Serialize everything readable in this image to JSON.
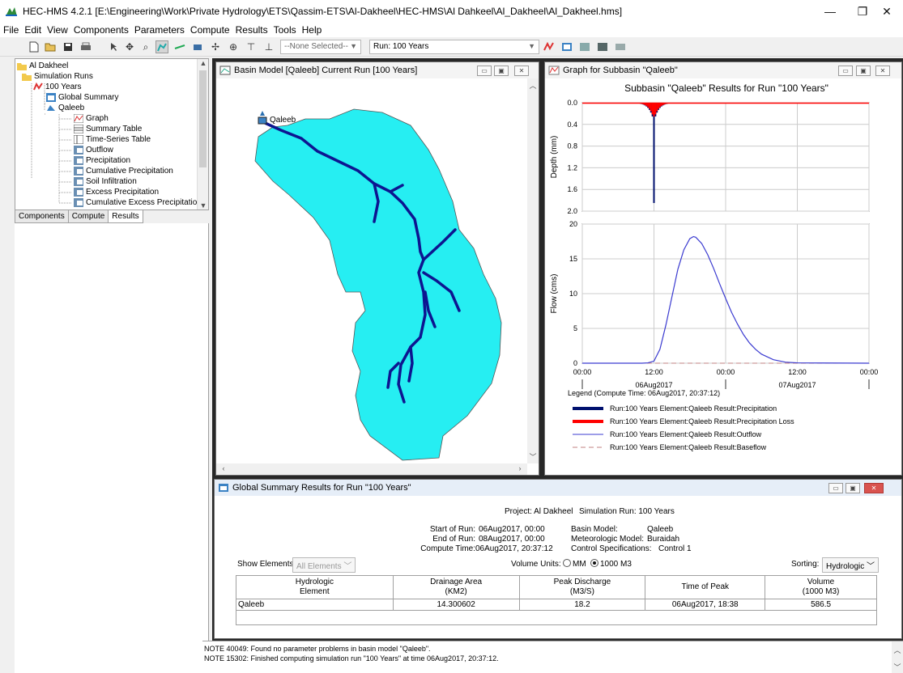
{
  "window": {
    "title": "HEC-HMS 4.2.1 [E:\\Engineering\\Work\\Private Hydrology\\ETS\\Qassim-ETS\\Al-Dakheel\\HEC-HMS\\Al Dahkeel\\Al_Dakheel\\Al_Dakheel.hms]",
    "minimize": "—",
    "restore": "❐",
    "close": "✕"
  },
  "menu": [
    "File",
    "Edit",
    "View",
    "Components",
    "Parameters",
    "Compute",
    "Results",
    "Tools",
    "Help"
  ],
  "toolbar": {
    "selection": "--None Selected--",
    "run": "Run: 100 Years"
  },
  "tree": {
    "items": [
      {
        "label": "Al Dakheel",
        "icon": "folder-icon"
      },
      {
        "label": "Simulation Runs",
        "icon": "folder-icon"
      },
      {
        "label": "100 Years",
        "icon": "run-icon"
      },
      {
        "label": "Global Summary",
        "icon": "table-icon"
      },
      {
        "label": "Qaleeb",
        "icon": "subbasin-icon"
      },
      {
        "label": "Graph",
        "icon": "graph-icon"
      },
      {
        "label": "Summary Table",
        "icon": "table-icon"
      },
      {
        "label": "Time-Series Table",
        "icon": "table-icon"
      },
      {
        "label": "Outflow",
        "icon": "series-icon"
      },
      {
        "label": "Precipitation",
        "icon": "series-icon"
      },
      {
        "label": "Cumulative Precipitation",
        "icon": "series-icon"
      },
      {
        "label": "Soil Infiltration",
        "icon": "series-icon"
      },
      {
        "label": "Excess Precipitation",
        "icon": "series-icon"
      },
      {
        "label": "Cumulative Excess Precipitation",
        "icon": "series-icon"
      }
    ]
  },
  "tabs": [
    "Components",
    "Compute",
    "Results"
  ],
  "basin_window": {
    "title": "Basin Model [Qaleeb] Current Run [100 Years]",
    "element_label": "Qaleeb"
  },
  "graph_window": {
    "title": "Graph for Subbasin \"Qaleeb\""
  },
  "chart_data": [
    {
      "type": "bar",
      "title": "Subbasin \"Qaleeb\" Results for Run \"100 Years\"",
      "ylabel": "Depth (mm)",
      "ylim": [
        2.0,
        0.0
      ],
      "yticks": [
        "0.0",
        "0.4",
        "0.8",
        "1.2",
        "1.6",
        "2.0"
      ],
      "x_hours": [
        0,
        12,
        24,
        36,
        48
      ],
      "series": [
        {
          "name": "Run:100 Years Element:Qaleeb Result:Precipitation",
          "color": "#00106e",
          "peak_hour": 12,
          "peak_value": 1.85
        },
        {
          "name": "Run:100 Years Element:Qaleeb Result:Precipitation Loss",
          "color": "#ff0000",
          "peak_hour": 12,
          "peak_value": 0.3
        }
      ]
    },
    {
      "type": "line",
      "ylabel": "Flow (cms)",
      "ylim": [
        0,
        20
      ],
      "yticks": [
        "0",
        "5",
        "10",
        "15",
        "20"
      ],
      "xticks": [
        "00:00",
        "12:00",
        "00:00",
        "12:00",
        "00:00"
      ],
      "date_labels": [
        "06Aug2017",
        "07Aug2017"
      ],
      "series": [
        {
          "name": "Run:100 Years Element:Qaleeb Result:Outflow",
          "color": "#3b3bd0",
          "x": [
            0,
            10,
            11,
            12,
            13,
            14,
            15,
            16,
            17,
            18,
            18.6,
            19,
            20,
            21,
            22,
            23,
            24,
            25,
            26,
            27,
            28,
            29,
            30,
            32,
            34,
            36,
            48
          ],
          "y": [
            0,
            0,
            0.05,
            0.3,
            2.0,
            5.5,
            9.5,
            13.5,
            16.3,
            17.9,
            18.2,
            18.1,
            17.2,
            15.6,
            13.6,
            11.4,
            9.3,
            7.3,
            5.6,
            4.1,
            2.9,
            2.0,
            1.3,
            0.5,
            0.15,
            0.05,
            0
          ]
        },
        {
          "name": "Run:100 Years Element:Qaleeb Result:Baseflow",
          "color": "#c08080",
          "x": [
            0,
            48
          ],
          "y": [
            0,
            0
          ]
        }
      ],
      "legend_title": "Legend (Compute Time: 06Aug2017, 20:37:12)"
    }
  ],
  "global_summary": {
    "title": "Global Summary Results for Run \"100 Years\"",
    "project_label": "Project: Al Dakheel",
    "run_label": "Simulation Run: 100 Years",
    "start_label": "Start of Run:",
    "start_value": "06Aug2017, 00:00",
    "end_label": "End of Run:",
    "end_value": "08Aug2017, 00:00",
    "compute_label": "Compute Time:",
    "compute_value": "06Aug2017, 20:37:12",
    "basin_label": "Basin Model:",
    "basin_value": "Qaleeb",
    "met_label": "Meteorologic Model:",
    "met_value": "Buraidah",
    "control_label": "Control Specifications:",
    "control_value": "Control 1",
    "show_label": "Show Elements:",
    "show_value": "All Elements",
    "units_label": "Volume Units:",
    "unit_mm": "MM",
    "unit_m3": "1000 M3",
    "sorting_label": "Sorting:",
    "sorting_value": "Hydrologic",
    "columns": [
      {
        "l1": "Hydrologic",
        "l2": "Element"
      },
      {
        "l1": "Drainage Area",
        "l2": "(KM2)"
      },
      {
        "l1": "Peak Discharge",
        "l2": "(M3/S)"
      },
      {
        "l1": "Time of Peak",
        "l2": ""
      },
      {
        "l1": "Volume",
        "l2": "(1000 M3)"
      }
    ],
    "rows": [
      [
        "Qaleeb",
        "14.300602",
        "18.2",
        "06Aug2017, 18:38",
        "586.5"
      ]
    ]
  },
  "notes": [
    "NOTE 40049:  Found no parameter problems in basin model \"Qaleeb\".",
    "NOTE 15302:  Finished computing simulation run \"100 Years\" at time 06Aug2017, 20:37:12."
  ]
}
